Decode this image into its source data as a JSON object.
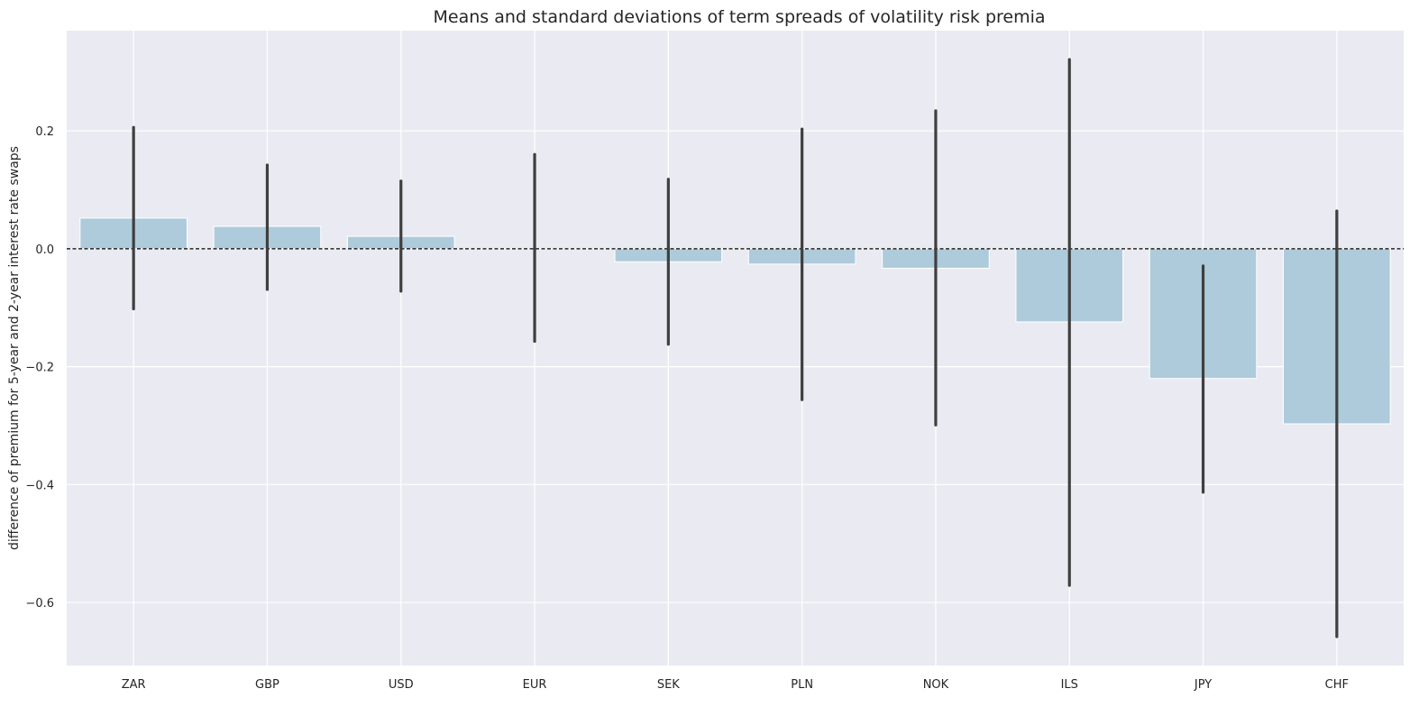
{
  "chart_data": {
    "type": "bar",
    "title": "Means and standard deviations of term spreads of volatility risk premia",
    "xlabel": "",
    "ylabel": "difference of premium for 5-year and 2-year interest rate swaps",
    "categories": [
      "ZAR",
      "GBP",
      "USD",
      "EUR",
      "SEK",
      "PLN",
      "NOK",
      "ILS",
      "JPY",
      "CHF"
    ],
    "values": [
      0.052,
      0.038,
      0.021,
      0.0,
      -0.022,
      -0.026,
      -0.033,
      -0.124,
      -0.22,
      -0.297
    ],
    "error_low": [
      -0.102,
      -0.069,
      -0.072,
      -0.157,
      -0.162,
      -0.256,
      -0.299,
      -0.571,
      -0.413,
      -0.658
    ],
    "error_high": [
      0.206,
      0.142,
      0.115,
      0.16,
      0.118,
      0.203,
      0.234,
      0.321,
      -0.029,
      0.064
    ],
    "ylim": [
      -0.707,
      0.37
    ],
    "yticks": [
      -0.6,
      -0.4,
      -0.2,
      0.0,
      0.2
    ],
    "ytick_labels": [
      "−0.6",
      "−0.4",
      "−0.2",
      "0.0",
      "0.2"
    ],
    "reference_line": 0.0,
    "grid": true,
    "colors": {
      "bar": "#aecbdb",
      "error": "#3f3f3f",
      "background": "#eaeaf2",
      "grid": "#ffffff",
      "reference_line": "#000000"
    }
  }
}
